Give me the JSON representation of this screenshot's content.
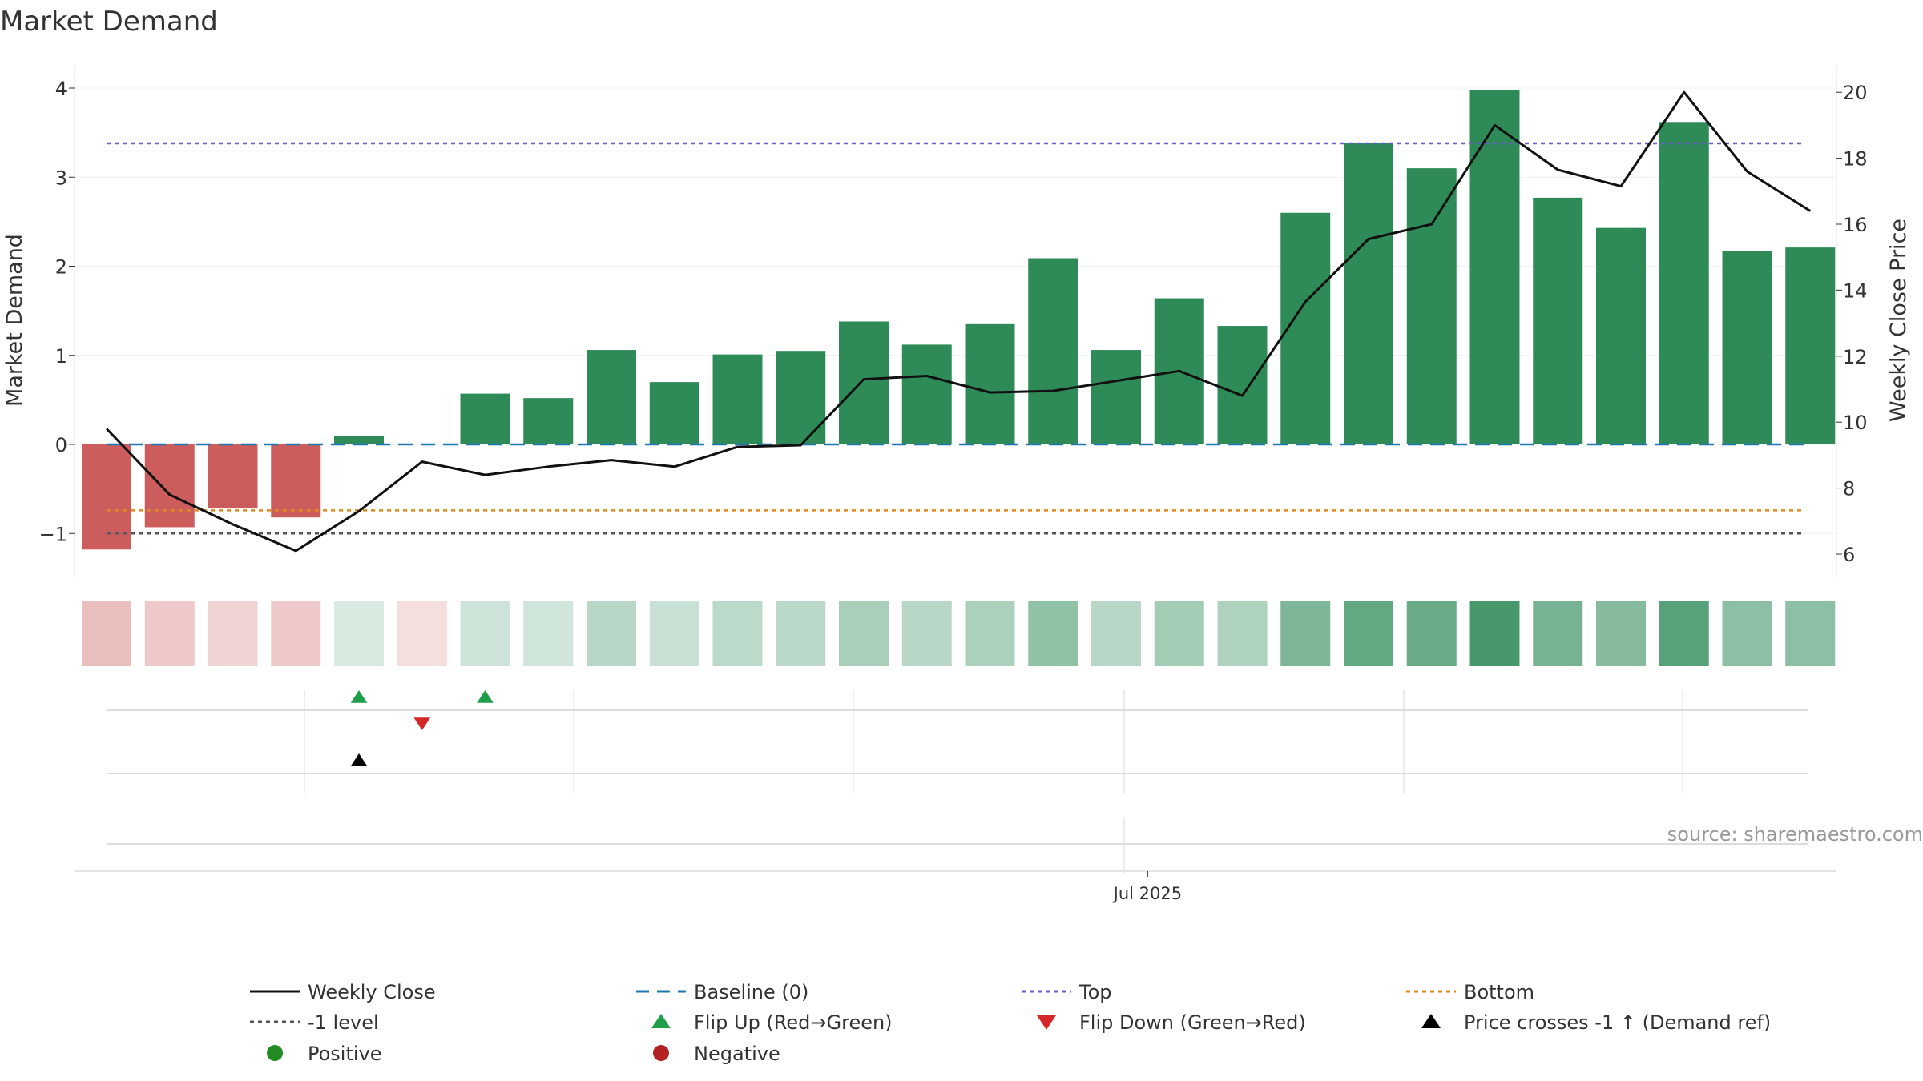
{
  "chart_data": {
    "type": "bar",
    "title": "Market Demand",
    "ylabel_left": "Market Demand",
    "ylabel_right": "Weekly Close Price",
    "ylim_left": [
      -1.5,
      4.3
    ],
    "ylim_right": [
      5.5,
      20.8
    ],
    "left_ticks": [
      4,
      3,
      2,
      1,
      0,
      -1
    ],
    "left_tick_labels": [
      "4",
      "3",
      "2",
      "1",
      "0",
      "−1"
    ],
    "right_ticks": [
      20,
      18,
      16,
      14,
      12,
      10,
      8,
      6
    ],
    "right_tick_labels": [
      "20",
      "18",
      "16",
      "14",
      "12",
      "10",
      "8",
      "6"
    ],
    "x_tick_label": "Jul 2025",
    "x_tick_index": 16.5,
    "demand": [
      -1.18,
      -0.93,
      -0.72,
      -0.82,
      0.09,
      0.0,
      0.57,
      0.52,
      1.06,
      0.7,
      1.01,
      1.05,
      1.38,
      1.12,
      1.35,
      2.09,
      1.06,
      1.64,
      1.33,
      2.6,
      3.38,
      3.1,
      3.98,
      2.77,
      2.43,
      3.62,
      2.17,
      2.21
    ],
    "weekly_close": [
      9.8,
      7.8,
      6.9,
      6.1,
      7.3,
      8.8,
      8.4,
      8.65,
      8.85,
      8.65,
      9.25,
      9.3,
      11.3,
      11.4,
      10.9,
      10.95,
      11.25,
      11.55,
      10.8,
      13.65,
      15.55,
      16.0,
      19.0,
      17.65,
      17.15,
      20.0,
      17.6,
      16.4
    ],
    "heat_strength": [
      0.4,
      0.33,
      0.28,
      0.33,
      0.18,
      0.16,
      0.23,
      0.22,
      0.34,
      0.26,
      0.32,
      0.33,
      0.41,
      0.34,
      0.4,
      0.53,
      0.34,
      0.44,
      0.39,
      0.62,
      0.75,
      0.72,
      0.88,
      0.65,
      0.58,
      0.8,
      0.55,
      0.55
    ],
    "top_level": 3.38,
    "bottom_level": -0.74,
    "minus_one_level": -1,
    "baseline": 0,
    "flip_up_indices": [
      4,
      6
    ],
    "flip_down_indices": [
      5
    ],
    "price_cross_indices": [
      4
    ],
    "source_text": "source: sharemaestro.com",
    "colors": {
      "positive_bar": "#2e8b57",
      "negative_bar": "#cd5c5c",
      "weekly_close": "#111111",
      "baseline": "#1f77b4",
      "top": "#6a5acd",
      "bottom": "#e08a1e",
      "minus_one": "#555555",
      "flip_up": "#1f9e4a",
      "flip_down": "#d62728",
      "price_cross": "#000000",
      "positive_dot": "#228b22",
      "negative_dot": "#b22222"
    },
    "legend": [
      {
        "label": "Weekly Close",
        "kind": "line-solid",
        "color": "#111111"
      },
      {
        "label": "Baseline (0)",
        "kind": "line-dashed",
        "color": "#1f77b4"
      },
      {
        "label": "Top",
        "kind": "line-dotted",
        "color": "#6a5acd"
      },
      {
        "label": "Bottom",
        "kind": "line-dotted",
        "color": "#e08a1e"
      },
      {
        "label": "-1 level",
        "kind": "line-dotted",
        "color": "#555555"
      },
      {
        "label": "Flip Up (Red→Green)",
        "kind": "tri-up",
        "color": "#1f9e4a"
      },
      {
        "label": "Flip Down (Green→Red)",
        "kind": "tri-down",
        "color": "#d62728"
      },
      {
        "label": "Price crosses -1 ↑ (Demand ref)",
        "kind": "tri-up",
        "color": "#000000"
      },
      {
        "label": "Positive",
        "kind": "dot",
        "color": "#228b22"
      },
      {
        "label": "Negative",
        "kind": "dot",
        "color": "#b22222"
      }
    ]
  }
}
